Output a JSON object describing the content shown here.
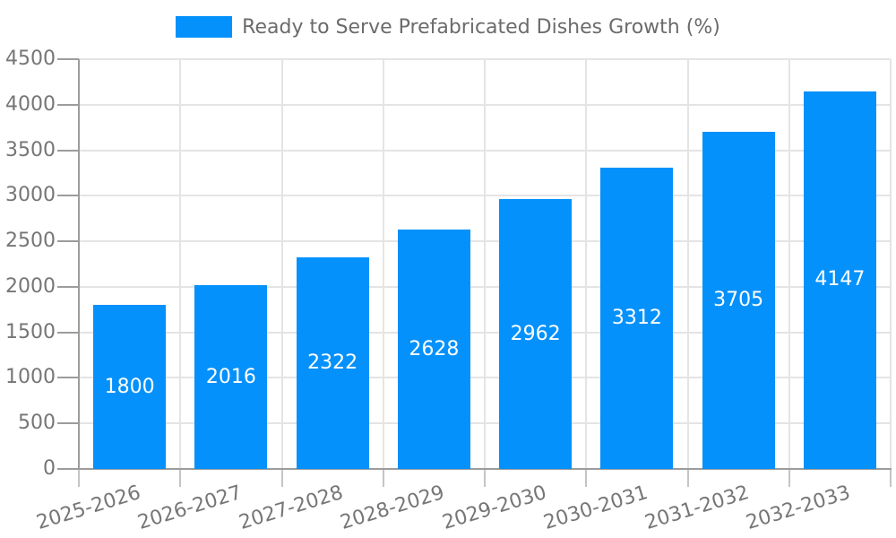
{
  "chart_data": {
    "type": "bar",
    "title": "",
    "xlabel": "",
    "ylabel": "",
    "categories": [
      "2025-2026",
      "2026-2027",
      "2027-2028",
      "2028-2029",
      "2029-2030",
      "2030-2031",
      "2031-2032",
      "2032-2033"
    ],
    "series": [
      {
        "name": "Ready to Serve Prefabricated Dishes Growth (%)",
        "values": [
          1800,
          2016,
          2322,
          2628,
          2962,
          3312,
          3705,
          4147
        ]
      }
    ],
    "value_labels": [
      1800,
      2016,
      2322,
      2628,
      2962,
      3312,
      3705,
      4147
    ],
    "value_label_position": "inside-center",
    "ylim": [
      0,
      4500
    ],
    "ytick_step": 500,
    "yticks": [
      0,
      500,
      1000,
      1500,
      2000,
      2500,
      3000,
      3500,
      4000,
      4500
    ],
    "grid": "on",
    "grid_lines": "horizontal at each ytick, vertical at category boundaries",
    "legend_position": "top-center",
    "xlabel_rotation_deg": -17,
    "colors": {
      "bar": "#0591fb",
      "legend_text": "#6b6b6b",
      "axis_label": "#767676",
      "grid_line": "#e4e4e4",
      "axis_line": "#9c9c9c",
      "x_tick": "#c4c4c4",
      "y_tick": "#9c9c9c",
      "value_label": "#ffffff",
      "background": "#ffffff"
    }
  }
}
